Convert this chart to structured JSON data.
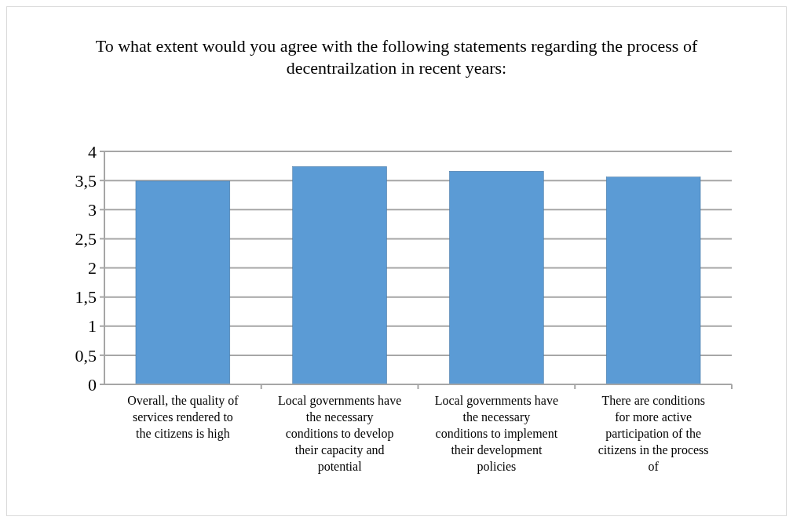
{
  "chart_data": {
    "type": "bar",
    "title": "To what extent would you agree with the following statements regarding the process of decentrailzation in recent years:",
    "categories": [
      "Overall, the quality of services rendered to the citizens is high",
      "Local governments have the necessary conditions to develop their capacity and potential",
      "Local governments have the necessary conditions to implement their development policies",
      "There are conditions for more active participation of the citizens in the process of"
    ],
    "values": [
      3.49,
      3.74,
      3.66,
      3.56
    ],
    "color": "#5b9bd5",
    "ylim": [
      0,
      4
    ],
    "yticks": [
      0,
      {
        "value": 0.5,
        "label": "0,5"
      },
      1,
      {
        "value": 1.5,
        "label": "1,5"
      },
      2,
      {
        "value": 2.5,
        "label": "2,5"
      },
      3,
      {
        "value": 3.5,
        "label": "3,5"
      },
      4
    ],
    "grid": "y"
  }
}
